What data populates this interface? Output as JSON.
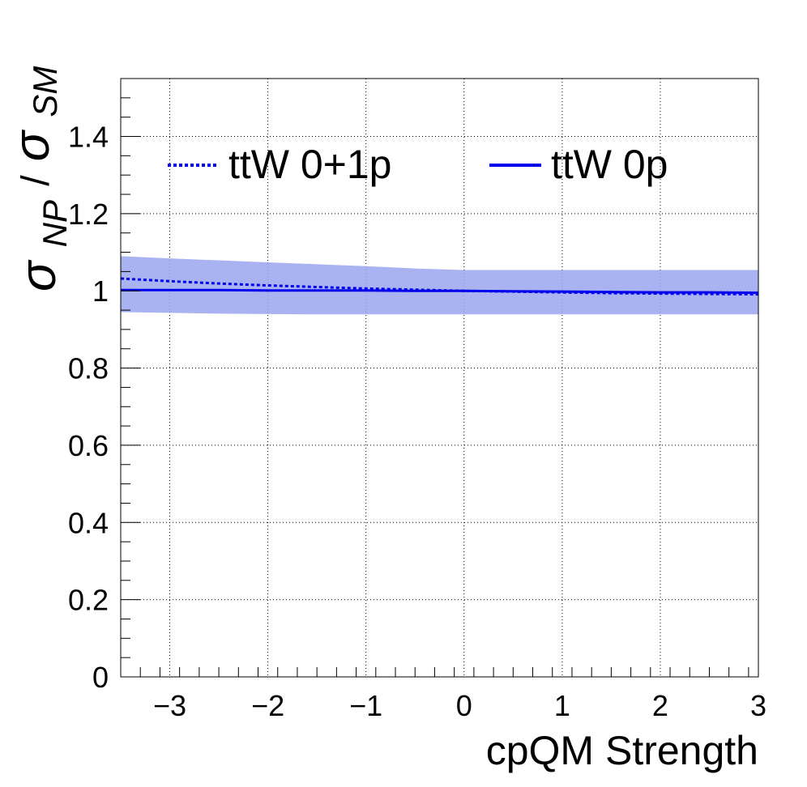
{
  "chart_data": {
    "type": "line",
    "xlabel": "cpQM Strength",
    "ylabel": {
      "symbol": "σ",
      "numerator_sub": "NP",
      "denominator_sub": "SM"
    },
    "xlim": [
      -3.5,
      3
    ],
    "ylim": [
      0,
      1.55
    ],
    "x_ticks": [
      -3,
      -2,
      -1,
      0,
      1,
      2,
      3
    ],
    "x_tick_labels": [
      "−3",
      "−2",
      "−1",
      "0",
      "1",
      "2",
      "3"
    ],
    "y_ticks": [
      0,
      0.2,
      0.4,
      0.6,
      0.8,
      1.0,
      1.2,
      1.4
    ],
    "y_tick_labels": [
      "0",
      "0.2",
      "0.4",
      "0.6",
      "0.8",
      "1",
      "1.2",
      "1.4"
    ],
    "grid": true,
    "legend_position": "top",
    "series": [
      {
        "name": "ttW 0+1p",
        "style": "dotted",
        "color": "#0000ee",
        "x": [
          -3.5,
          -3.0,
          -2.5,
          -2.0,
          -1.5,
          -1.0,
          -0.5,
          0.0,
          0.5,
          1.0,
          1.5,
          2.0,
          2.5,
          3.0
        ],
        "y": [
          1.032,
          1.025,
          1.019,
          1.014,
          1.01,
          1.006,
          1.003,
          1.0,
          0.998,
          0.996,
          0.994,
          0.993,
          0.992,
          0.991
        ],
        "band_lower": [
          0.945,
          0.943,
          0.941,
          0.94,
          0.939,
          0.939,
          0.939,
          0.939,
          0.939,
          0.939,
          0.939,
          0.939,
          0.939,
          0.939
        ],
        "band_upper": [
          1.09,
          1.084,
          1.079,
          1.074,
          1.069,
          1.064,
          1.058,
          1.054,
          1.054,
          1.054,
          1.054,
          1.054,
          1.054,
          1.054
        ]
      },
      {
        "name": "ttW 0p",
        "style": "solid",
        "color": "#0000ee",
        "x": [
          -3.5,
          -3.0,
          -2.5,
          -2.0,
          -1.5,
          -1.0,
          -0.5,
          0.0,
          0.5,
          1.0,
          1.5,
          2.0,
          2.5,
          3.0
        ],
        "y": [
          1.002,
          1.002,
          1.002,
          1.001,
          1.001,
          1.001,
          1.0,
          1.0,
          0.999,
          0.998,
          0.997,
          0.996,
          0.996,
          0.995
        ]
      }
    ],
    "band_color": "#9aa6ee"
  }
}
